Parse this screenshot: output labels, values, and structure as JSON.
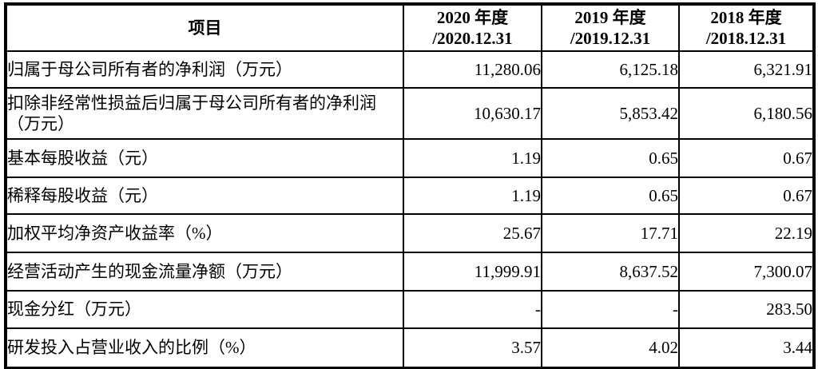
{
  "table": {
    "item_header": "项目",
    "year_headers": [
      {
        "line1": "2020 年度",
        "line2": "/2020.12.31"
      },
      {
        "line1": "2019 年度",
        "line2": "/2019.12.31"
      },
      {
        "line1": "2018 年度",
        "line2": "/2018.12.31"
      }
    ],
    "rows": [
      {
        "label": "归属于母公司所有者的净利润（万元）",
        "values": [
          "11,280.06",
          "6,125.18",
          "6,321.91"
        ]
      },
      {
        "label": "扣除非经常性损益后归属于母公司所有者的净利润（万元）",
        "values": [
          "10,630.17",
          "5,853.42",
          "6,180.56"
        ]
      },
      {
        "label": "基本每股收益（元）",
        "values": [
          "1.19",
          "0.65",
          "0.67"
        ]
      },
      {
        "label": "稀释每股收益（元）",
        "values": [
          "1.19",
          "0.65",
          "0.67"
        ]
      },
      {
        "label": "加权平均净资产收益率（%）",
        "values": [
          "25.67",
          "17.71",
          "22.19"
        ]
      },
      {
        "label": "经营活动产生的现金流量净额（万元）",
        "values": [
          "11,999.91",
          "8,637.52",
          "7,300.07"
        ]
      },
      {
        "label": "现金分红（万元）",
        "values": [
          "-",
          "-",
          "283.50"
        ]
      },
      {
        "label": "研发投入占营业收入的比例（%）",
        "values": [
          "3.57",
          "4.02",
          "3.44"
        ]
      }
    ],
    "colors": {
      "border": "#000000",
      "text": "#000000",
      "background": "#ffffff"
    }
  }
}
